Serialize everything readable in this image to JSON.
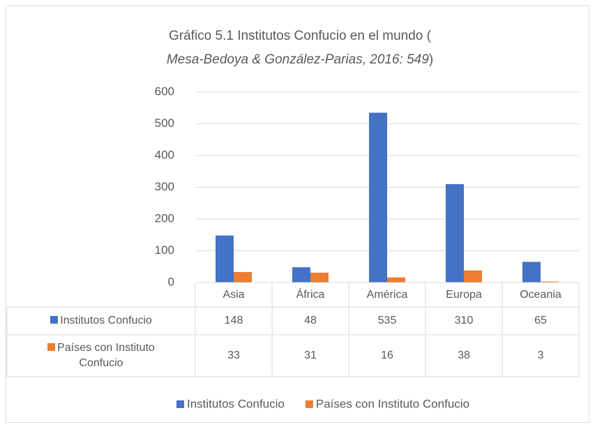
{
  "chart_data": {
    "type": "bar",
    "title_parts": [
      "Gráfico 5.1 Institutos Confucio en el mundo (",
      "Mesa-Bedoya & González-Parias, 2016: 549",
      ")"
    ],
    "categories": [
      "Asia",
      "África",
      "América",
      "Europa",
      "Oceania"
    ],
    "series": [
      {
        "name": "Institutos Confucio",
        "color": "#4472c4",
        "values": [
          148,
          48,
          535,
          310,
          65
        ]
      },
      {
        "name": "Países con Instituto Confucio",
        "color": "#ed7d31",
        "values": [
          33,
          31,
          16,
          38,
          3
        ]
      }
    ],
    "ylim": [
      0,
      600
    ],
    "yticks": [
      0,
      100,
      200,
      300,
      400,
      500,
      600
    ],
    "grid": true,
    "data_table": true,
    "legend": "bottom"
  }
}
